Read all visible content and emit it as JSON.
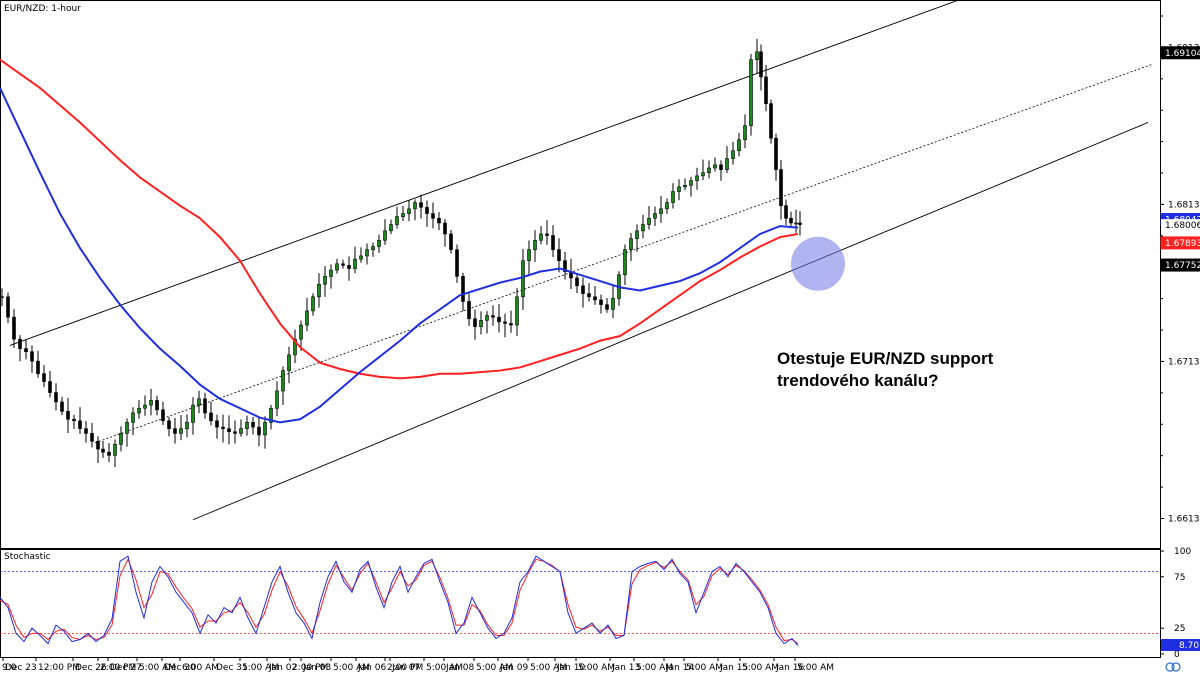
{
  "chart_data": {
    "type": "candlestick",
    "title": "EUR/NZD: 1-hour",
    "x_labels": [
      "Dec 23",
      "12:00 PM",
      "Dec 26",
      "2:00 PM",
      "Dec 27",
      "5:00 AM",
      "Dec 30",
      "6:00 AM",
      "Dec 31",
      "5:00 AM",
      "Jan 02",
      "2:00 PM",
      "Jan 03",
      "5:00 AM",
      "Jan 06",
      "2:00 PM",
      "Jan 07",
      "5:00 AM",
      "Jan 08",
      "5:00 AM",
      "Jan 09",
      "5:00 AM",
      "Jan 10",
      "5:00 AM",
      "Jan 13",
      "5:00 AM",
      "Jan 14",
      "5:00 AM",
      "Jan 15",
      "5:00 AM",
      "Jan 16",
      "5:00 AM"
    ],
    "x_label_partial": "9:0",
    "price_axis": {
      "ylim": [
        1.66138,
        1.6938
      ],
      "ticks": [
        "1.69138",
        "1.68138",
        "1.67138",
        "1.66138"
      ],
      "tick_values": [
        1.69138,
        1.68138,
        1.67138,
        1.66138
      ],
      "labels": [
        {
          "text": "1.69104",
          "value": 1.69104,
          "color": "#000000",
          "text_color": "#ffffff"
        },
        {
          "text": "1.68042",
          "value": 1.68042,
          "color": "#1f2ee0",
          "text_color": "#ffffff"
        },
        {
          "text": "1.68006",
          "value": 1.68006,
          "color": "#ffffff",
          "text_color": "#000000"
        },
        {
          "text": "1.67893",
          "value": 1.67893,
          "color": "#ff2020",
          "text_color": "#ffffff"
        },
        {
          "text": "1.67752",
          "value": 1.67752,
          "color": "#000000",
          "text_color": "#ffffff"
        }
      ]
    },
    "series": [
      {
        "name": "Close",
        "color": "#000000",
        "x": [
          0,
          6,
          12,
          18,
          24,
          30,
          36,
          42,
          48,
          54,
          60,
          66,
          72,
          78,
          84,
          90,
          96,
          101,
          107,
          113,
          119,
          125,
          131,
          137,
          143,
          149,
          155,
          161,
          167,
          173,
          179,
          185,
          191,
          197,
          203,
          209,
          215,
          221,
          227,
          233,
          239,
          245,
          251,
          257,
          263,
          269,
          275,
          281,
          287,
          293,
          299,
          305,
          311,
          317,
          323,
          329,
          335,
          341,
          347,
          353,
          359,
          365,
          371,
          377,
          383,
          389,
          395,
          401,
          407,
          413,
          419,
          425,
          431,
          437,
          443,
          449,
          455,
          461,
          467,
          473,
          479,
          485,
          491,
          497,
          503,
          509,
          515,
          521,
          527,
          533,
          539,
          545,
          551,
          557,
          563,
          569,
          575,
          581,
          587,
          593,
          599,
          605,
          611,
          617,
          623,
          629,
          635,
          641,
          647,
          653,
          659,
          665,
          671,
          677,
          683,
          689,
          695,
          701,
          707,
          713,
          719,
          725,
          731,
          737,
          743,
          749,
          755,
          759,
          764,
          769,
          774,
          779,
          784,
          789,
          794,
          798
        ],
        "values": [
          1.6755,
          1.6742,
          1.6728,
          1.6722,
          1.672,
          1.6714,
          1.6706,
          1.6701,
          1.6694,
          1.6688,
          1.6682,
          1.6677,
          1.6676,
          1.6671,
          1.6668,
          1.6663,
          1.6658,
          1.6656,
          1.6654,
          1.6661,
          1.6668,
          1.6675,
          1.6681,
          1.6684,
          1.6686,
          1.6689,
          1.6683,
          1.6676,
          1.6671,
          1.6668,
          1.6671,
          1.6675,
          1.6686,
          1.669,
          1.6681,
          1.6676,
          1.6672,
          1.6671,
          1.6669,
          1.6668,
          1.6671,
          1.6675,
          1.6672,
          1.6667,
          1.6675,
          1.6684,
          1.6695,
          1.6708,
          1.6718,
          1.6728,
          1.6737,
          1.6746,
          1.6755,
          1.6763,
          1.6768,
          1.6772,
          1.6776,
          1.6775,
          1.6773,
          1.6779,
          1.6781,
          1.6785,
          1.6787,
          1.6791,
          1.6797,
          1.6801,
          1.6806,
          1.6808,
          1.6811,
          1.6815,
          1.6812,
          1.6808,
          1.6805,
          1.6802,
          1.6795,
          1.6785,
          1.6768,
          1.6752,
          1.6741,
          1.6736,
          1.674,
          1.6743,
          1.6742,
          1.6739,
          1.6738,
          1.6737,
          1.6755,
          1.6778,
          1.6785,
          1.6791,
          1.6795,
          1.6794,
          1.6785,
          1.6778,
          1.6771,
          1.6767,
          1.6762,
          1.6757,
          1.6755,
          1.6753,
          1.675,
          1.6747,
          1.6754,
          1.6769,
          1.6785,
          1.6792,
          1.6797,
          1.6801,
          1.6805,
          1.6808,
          1.6811,
          1.6815,
          1.6822,
          1.6825,
          1.6826,
          1.6829,
          1.6832,
          1.6834,
          1.6837,
          1.6839,
          1.6836,
          1.6843,
          1.6848,
          1.6855,
          1.6864,
          1.6906,
          1.6911,
          1.6895,
          1.6878,
          1.6856,
          1.6836,
          1.6813,
          1.6805,
          1.6802,
          1.6802,
          1.6801
        ]
      },
      {
        "name": "MA blue",
        "color": "#1f2ee0",
        "x": [
          0,
          20,
          40,
          60,
          80,
          100,
          120,
          140,
          160,
          180,
          200,
          220,
          240,
          260,
          280,
          300,
          320,
          340,
          360,
          380,
          400,
          420,
          440,
          460,
          480,
          500,
          520,
          540,
          560,
          580,
          600,
          620,
          640,
          660,
          680,
          700,
          720,
          740,
          760,
          780,
          798
        ],
        "values": [
          1.6888,
          1.6861,
          1.6834,
          1.6808,
          1.6786,
          1.6767,
          1.675,
          1.6735,
          1.6722,
          1.6711,
          1.6699,
          1.669,
          1.6684,
          1.6678,
          1.6675,
          1.6677,
          1.6685,
          1.6696,
          1.6707,
          1.6717,
          1.6727,
          1.6738,
          1.6747,
          1.6756,
          1.676,
          1.6764,
          1.6767,
          1.6771,
          1.6773,
          1.6769,
          1.6765,
          1.6761,
          1.6759,
          1.6762,
          1.6765,
          1.677,
          1.6777,
          1.6786,
          1.6795,
          1.68,
          1.6799
        ]
      },
      {
        "name": "MA red",
        "color": "#ff2020",
        "x": [
          0,
          20,
          40,
          60,
          80,
          100,
          120,
          140,
          160,
          180,
          200,
          220,
          240,
          260,
          280,
          300,
          320,
          340,
          360,
          380,
          400,
          420,
          440,
          460,
          480,
          500,
          520,
          540,
          560,
          580,
          600,
          620,
          640,
          660,
          680,
          700,
          720,
          740,
          760,
          780,
          798
        ],
        "values": [
          1.6906,
          1.6897,
          1.6888,
          1.6877,
          1.6866,
          1.6854,
          1.6842,
          1.6831,
          1.6822,
          1.6813,
          1.6805,
          1.6793,
          1.6778,
          1.6757,
          1.6738,
          1.6723,
          1.6713,
          1.6709,
          1.6706,
          1.6704,
          1.6703,
          1.6704,
          1.6706,
          1.6706,
          1.6707,
          1.6708,
          1.671,
          1.6714,
          1.6718,
          1.6722,
          1.6727,
          1.673,
          1.6738,
          1.6747,
          1.6756,
          1.6765,
          1.6772,
          1.678,
          1.6787,
          1.6793,
          1.6795
        ]
      }
    ],
    "channel": {
      "upper_start": {
        "x": 10,
        "value": 1.6724
      },
      "upper_end": {
        "x": 963,
        "value": 1.6945
      },
      "middle_start": {
        "x": 95,
        "value": 1.6662
      },
      "middle_end": {
        "x": 1152,
        "value": 1.6903
      },
      "lower_start": {
        "x": 193,
        "value": 1.6613
      },
      "lower_end": {
        "x": 1148,
        "value": 1.6866
      }
    },
    "highlight": {
      "x": 818,
      "value": 1.6776
    },
    "stochastic": {
      "title": "Stochastic",
      "ticks": [
        "100",
        "75",
        "25",
        "0"
      ],
      "tick_values": [
        100,
        75,
        25,
        0
      ],
      "levels": [
        80,
        20
      ],
      "level_colors": [
        "#1f2ee0",
        "#ff2020"
      ],
      "current_label": "8.70",
      "current_value": 8.7,
      "k_series": {
        "name": "%K",
        "color": "#1f2ee0",
        "x": [
          0,
          8,
          16,
          24,
          32,
          40,
          48,
          56,
          64,
          72,
          80,
          88,
          96,
          104,
          112,
          120,
          128,
          136,
          144,
          152,
          160,
          168,
          176,
          184,
          192,
          200,
          208,
          216,
          224,
          232,
          240,
          248,
          256,
          264,
          272,
          280,
          288,
          296,
          304,
          312,
          320,
          328,
          336,
          344,
          352,
          360,
          368,
          376,
          384,
          392,
          400,
          408,
          416,
          424,
          432,
          440,
          448,
          456,
          464,
          472,
          480,
          488,
          496,
          504,
          512,
          520,
          528,
          536,
          544,
          552,
          560,
          568,
          576,
          584,
          592,
          600,
          608,
          616,
          624,
          632,
          640,
          648,
          656,
          664,
          672,
          680,
          688,
          696,
          704,
          712,
          720,
          728,
          736,
          744,
          752,
          760,
          768,
          776,
          784,
          792,
          798
        ],
        "values": [
          55,
          45,
          20,
          12,
          25,
          18,
          10,
          28,
          22,
          12,
          14,
          20,
          12,
          18,
          34,
          90,
          95,
          60,
          35,
          70,
          85,
          75,
          60,
          50,
          40,
          20,
          38,
          30,
          45,
          40,
          55,
          35,
          20,
          45,
          70,
          85,
          60,
          40,
          30,
          15,
          50,
          75,
          90,
          70,
          60,
          82,
          90,
          65,
          45,
          70,
          85,
          60,
          75,
          88,
          92,
          70,
          50,
          20,
          30,
          55,
          40,
          25,
          15,
          20,
          35,
          70,
          80,
          95,
          90,
          85,
          80,
          40,
          20,
          25,
          30,
          20,
          28,
          15,
          18,
          80,
          85,
          88,
          90,
          82,
          92,
          78,
          70,
          40,
          60,
          80,
          85,
          75,
          88,
          80,
          70,
          60,
          45,
          20,
          10,
          15,
          8
        ]
      },
      "d_series": {
        "name": "%D",
        "color": "#ff2020",
        "x": [
          0,
          8,
          16,
          24,
          32,
          40,
          48,
          56,
          64,
          72,
          80,
          88,
          96,
          104,
          112,
          120,
          128,
          136,
          144,
          152,
          160,
          168,
          176,
          184,
          192,
          200,
          208,
          216,
          224,
          232,
          240,
          248,
          256,
          264,
          272,
          280,
          288,
          296,
          304,
          312,
          320,
          328,
          336,
          344,
          352,
          360,
          368,
          376,
          384,
          392,
          400,
          408,
          416,
          424,
          432,
          440,
          448,
          456,
          464,
          472,
          480,
          488,
          496,
          504,
          512,
          520,
          528,
          536,
          544,
          552,
          560,
          568,
          576,
          584,
          592,
          600,
          608,
          616,
          624,
          632,
          640,
          648,
          656,
          664,
          672,
          680,
          688,
          696,
          704,
          712,
          720,
          728,
          736,
          744,
          752,
          760,
          768,
          776,
          784,
          792,
          798
        ],
        "values": [
          52,
          48,
          28,
          16,
          20,
          20,
          14,
          22,
          24,
          16,
          14,
          18,
          14,
          16,
          28,
          76,
          92,
          72,
          45,
          58,
          80,
          78,
          65,
          54,
          44,
          26,
          32,
          32,
          40,
          42,
          50,
          40,
          26,
          38,
          62,
          80,
          66,
          46,
          34,
          20,
          42,
          68,
          86,
          74,
          62,
          78,
          88,
          70,
          50,
          64,
          80,
          66,
          72,
          86,
          90,
          74,
          54,
          28,
          28,
          48,
          42,
          28,
          18,
          18,
          30,
          62,
          78,
          92,
          90,
          86,
          80,
          48,
          26,
          24,
          28,
          22,
          26,
          18,
          18,
          68,
          82,
          86,
          89,
          84,
          90,
          80,
          72,
          48,
          56,
          76,
          83,
          77,
          86,
          81,
          72,
          62,
          48,
          26,
          13,
          14,
          10
        ]
      }
    }
  },
  "annotation": {
    "line1": "Otestuje EUR/NZD support",
    "line2": "trendového kanálu?"
  }
}
